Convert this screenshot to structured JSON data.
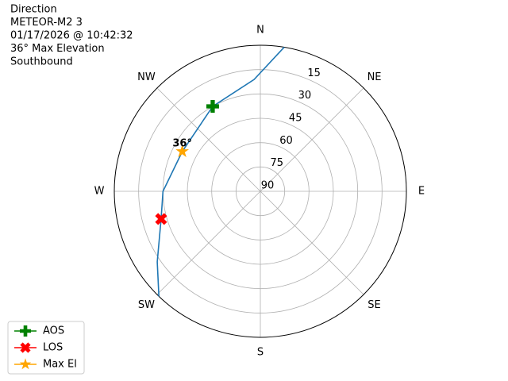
{
  "chart_data": {
    "type": "polar",
    "title_lines": [
      "Direction",
      "METEOR-M2 3",
      "01/17/2026 @ 10:42:32",
      "36° Max Elevation",
      "Southbound"
    ],
    "xticks": [
      {
        "value": 0,
        "label": "N"
      },
      {
        "value": 45,
        "label": "NE"
      },
      {
        "value": 90,
        "label": "E"
      },
      {
        "value": 135,
        "label": "SE"
      },
      {
        "value": 180,
        "label": "S"
      },
      {
        "value": 225,
        "label": "SW"
      },
      {
        "value": 270,
        "label": "W"
      },
      {
        "value": 315,
        "label": "NW"
      }
    ],
    "ylim": [
      90,
      0
    ],
    "yticks": [
      15,
      30,
      45,
      60,
      75,
      90
    ],
    "grid": true,
    "series": [
      {
        "color": "#1f77b4",
        "x": [
          9.4,
          356.8,
          330.7,
          297,
          270,
          254.4,
          235.6,
          224
        ],
        "values": [
          0,
          21,
          30,
          36,
          30,
          26.5,
          13,
          0
        ]
      },
      {
        "name": "AOS",
        "color": "#008000",
        "marker": "plus",
        "x": [
          330.7
        ],
        "values": [
          30
        ]
      },
      {
        "name": "LOS",
        "color": "#ff0000",
        "marker": "x",
        "x": [
          254.4
        ],
        "values": [
          26.5
        ]
      },
      {
        "name": "Max El",
        "color": "#ffa500",
        "marker": "star",
        "x": [
          297
        ],
        "values": [
          36
        ]
      }
    ],
    "annotations": [
      {
        "text": "36°",
        "x": 297,
        "y": 36
      }
    ],
    "legend": "lower-left"
  }
}
